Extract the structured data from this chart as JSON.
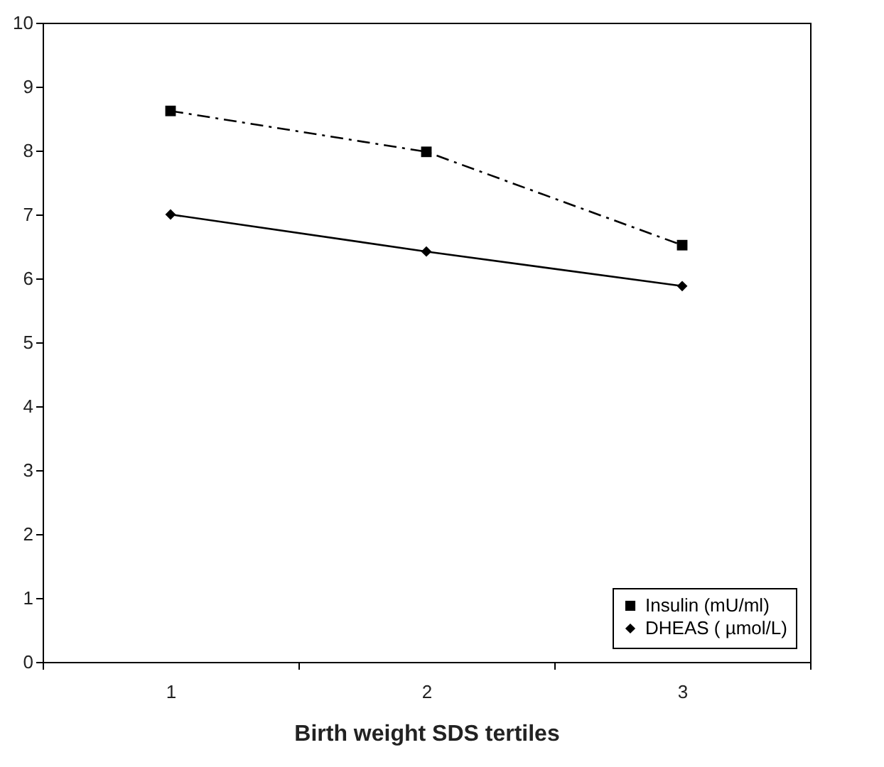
{
  "chart_data": {
    "type": "line",
    "xlabel": "Birth weight SDS tertiles",
    "categories": [
      "1",
      "2",
      "3"
    ],
    "ylim": [
      0,
      10
    ],
    "yticks": [
      0,
      1,
      2,
      3,
      4,
      5,
      6,
      7,
      8,
      9,
      10
    ],
    "grid": false,
    "legend": "bottom right",
    "series": [
      {
        "name": "Insulin (mU/ml)",
        "color": "#000000",
        "values": [
          8.62,
          7.98,
          6.52
        ],
        "marker": "square",
        "line_style": "dashed"
      },
      {
        "name": "DHEAS ( µmol/L)",
        "color": "#000000",
        "values": [
          7.0,
          6.42,
          5.88
        ],
        "marker": "diamond",
        "line_style": "solid"
      }
    ]
  }
}
